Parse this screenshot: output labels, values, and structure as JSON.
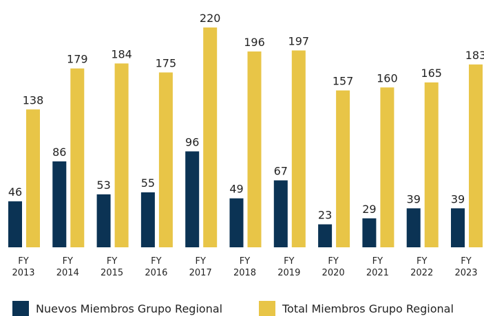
{
  "chart_data": {
    "type": "bar",
    "categories": [
      "FY 2013",
      "FY 2014",
      "FY 2015",
      "FY 2016",
      "FY 2017",
      "FY 2018",
      "FY 2019",
      "FY 2020",
      "FY 2021",
      "FY 2022",
      "FY 2023"
    ],
    "series": [
      {
        "name": "Nuevos Miembros Grupo Regional",
        "color": "#0b3354",
        "values": [
          46,
          86,
          53,
          55,
          96,
          49,
          67,
          23,
          29,
          39,
          39
        ]
      },
      {
        "name": "Total Miembros Grupo Regional",
        "color": "#e8c547",
        "values": [
          138,
          179,
          184,
          175,
          220,
          196,
          197,
          157,
          160,
          165,
          183
        ]
      }
    ],
    "legend": "bottom"
  }
}
